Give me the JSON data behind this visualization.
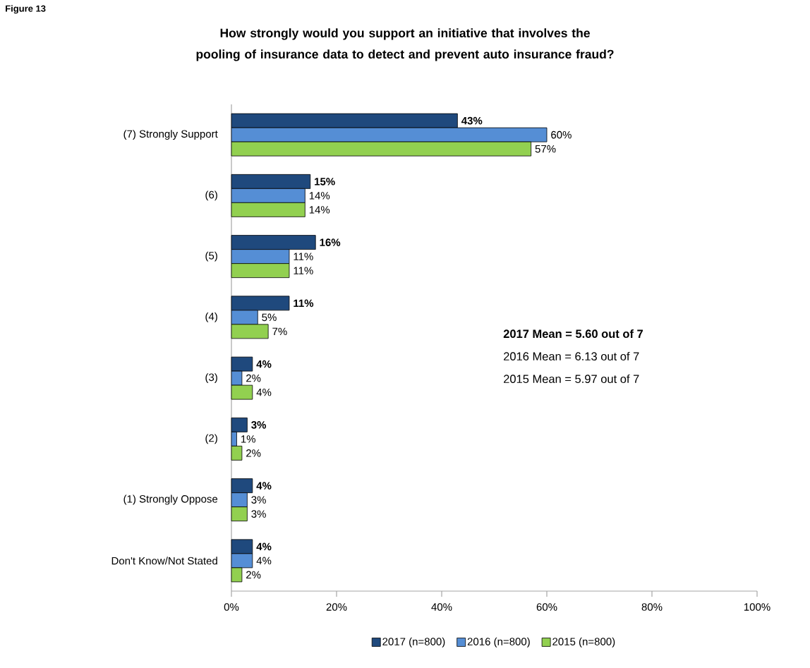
{
  "chart_data": {
    "type": "bar",
    "orientation": "horizontal",
    "title": "How strongly would you support an initiative that involves the pooling of insurance data to detect and prevent auto insurance fraud?",
    "categories": [
      "(7) Strongly Support",
      "(6)",
      "(5)",
      "(4)",
      "(3)",
      "(2)",
      "(1) Strongly Oppose",
      "Don't Know/Not Stated"
    ],
    "series": [
      {
        "name": "2017 (n=800)",
        "color": "#1f497d",
        "values": [
          43,
          15,
          16,
          11,
          4,
          3,
          4,
          4
        ],
        "value_labels": [
          "43%",
          "15%",
          "16%",
          "11%",
          "4%",
          "3%",
          "4%",
          "4%"
        ]
      },
      {
        "name": "2016 (n=800)",
        "color": "#558ed5",
        "values": [
          60,
          14,
          11,
          5,
          2,
          1,
          3,
          4
        ],
        "value_labels": [
          "60%",
          "14%",
          "11%",
          "5%",
          "2%",
          "1%",
          "3%",
          "4%"
        ]
      },
      {
        "name": "2015 (n=800)",
        "color": "#92d050",
        "values": [
          57,
          14,
          11,
          7,
          4,
          2,
          3,
          2
        ],
        "value_labels": [
          "57%",
          "14%",
          "11%",
          "7%",
          "4%",
          "2%",
          "3%",
          "2%"
        ]
      }
    ],
    "xlim": [
      0,
      100
    ],
    "xticks": [
      {
        "value": 0,
        "label": "0%"
      },
      {
        "value": 20,
        "label": "20%"
      },
      {
        "value": 40,
        "label": "40%"
      },
      {
        "value": 60,
        "label": "60%"
      },
      {
        "value": 80,
        "label": "80%"
      },
      {
        "value": 100,
        "label": "100%"
      }
    ],
    "legend": "bottom",
    "annotations": [
      "2017 Mean = 5.60 out of 7",
      "2016 Mean = 6.13 out of 7",
      "2015 Mean = 5.97 out of 7",
      "Figure 13"
    ]
  }
}
